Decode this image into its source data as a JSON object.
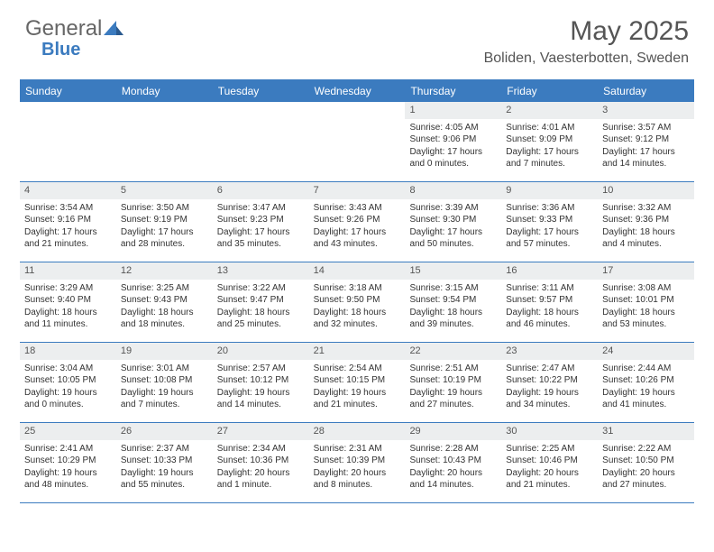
{
  "logo": {
    "text1": "General",
    "text2": "Blue"
  },
  "title": "May 2025",
  "location": "Boliden, Vaesterbotten, Sweden",
  "colors": {
    "header_bg": "#3b7bbf",
    "header_text": "#ffffff",
    "daynum_bg": "#eceeef",
    "border": "#3b7bbf",
    "body_bg": "#ffffff",
    "text": "#333333",
    "logo_general": "#666666",
    "logo_blue": "#3b7bbf"
  },
  "day_headers": [
    "Sunday",
    "Monday",
    "Tuesday",
    "Wednesday",
    "Thursday",
    "Friday",
    "Saturday"
  ],
  "weeks": [
    [
      {
        "n": "",
        "sr": "",
        "ss": "",
        "dl": ""
      },
      {
        "n": "",
        "sr": "",
        "ss": "",
        "dl": ""
      },
      {
        "n": "",
        "sr": "",
        "ss": "",
        "dl": ""
      },
      {
        "n": "",
        "sr": "",
        "ss": "",
        "dl": ""
      },
      {
        "n": "1",
        "sr": "Sunrise: 4:05 AM",
        "ss": "Sunset: 9:06 PM",
        "dl": "Daylight: 17 hours and 0 minutes."
      },
      {
        "n": "2",
        "sr": "Sunrise: 4:01 AM",
        "ss": "Sunset: 9:09 PM",
        "dl": "Daylight: 17 hours and 7 minutes."
      },
      {
        "n": "3",
        "sr": "Sunrise: 3:57 AM",
        "ss": "Sunset: 9:12 PM",
        "dl": "Daylight: 17 hours and 14 minutes."
      }
    ],
    [
      {
        "n": "4",
        "sr": "Sunrise: 3:54 AM",
        "ss": "Sunset: 9:16 PM",
        "dl": "Daylight: 17 hours and 21 minutes."
      },
      {
        "n": "5",
        "sr": "Sunrise: 3:50 AM",
        "ss": "Sunset: 9:19 PM",
        "dl": "Daylight: 17 hours and 28 minutes."
      },
      {
        "n": "6",
        "sr": "Sunrise: 3:47 AM",
        "ss": "Sunset: 9:23 PM",
        "dl": "Daylight: 17 hours and 35 minutes."
      },
      {
        "n": "7",
        "sr": "Sunrise: 3:43 AM",
        "ss": "Sunset: 9:26 PM",
        "dl": "Daylight: 17 hours and 43 minutes."
      },
      {
        "n": "8",
        "sr": "Sunrise: 3:39 AM",
        "ss": "Sunset: 9:30 PM",
        "dl": "Daylight: 17 hours and 50 minutes."
      },
      {
        "n": "9",
        "sr": "Sunrise: 3:36 AM",
        "ss": "Sunset: 9:33 PM",
        "dl": "Daylight: 17 hours and 57 minutes."
      },
      {
        "n": "10",
        "sr": "Sunrise: 3:32 AM",
        "ss": "Sunset: 9:36 PM",
        "dl": "Daylight: 18 hours and 4 minutes."
      }
    ],
    [
      {
        "n": "11",
        "sr": "Sunrise: 3:29 AM",
        "ss": "Sunset: 9:40 PM",
        "dl": "Daylight: 18 hours and 11 minutes."
      },
      {
        "n": "12",
        "sr": "Sunrise: 3:25 AM",
        "ss": "Sunset: 9:43 PM",
        "dl": "Daylight: 18 hours and 18 minutes."
      },
      {
        "n": "13",
        "sr": "Sunrise: 3:22 AM",
        "ss": "Sunset: 9:47 PM",
        "dl": "Daylight: 18 hours and 25 minutes."
      },
      {
        "n": "14",
        "sr": "Sunrise: 3:18 AM",
        "ss": "Sunset: 9:50 PM",
        "dl": "Daylight: 18 hours and 32 minutes."
      },
      {
        "n": "15",
        "sr": "Sunrise: 3:15 AM",
        "ss": "Sunset: 9:54 PM",
        "dl": "Daylight: 18 hours and 39 minutes."
      },
      {
        "n": "16",
        "sr": "Sunrise: 3:11 AM",
        "ss": "Sunset: 9:57 PM",
        "dl": "Daylight: 18 hours and 46 minutes."
      },
      {
        "n": "17",
        "sr": "Sunrise: 3:08 AM",
        "ss": "Sunset: 10:01 PM",
        "dl": "Daylight: 18 hours and 53 minutes."
      }
    ],
    [
      {
        "n": "18",
        "sr": "Sunrise: 3:04 AM",
        "ss": "Sunset: 10:05 PM",
        "dl": "Daylight: 19 hours and 0 minutes."
      },
      {
        "n": "19",
        "sr": "Sunrise: 3:01 AM",
        "ss": "Sunset: 10:08 PM",
        "dl": "Daylight: 19 hours and 7 minutes."
      },
      {
        "n": "20",
        "sr": "Sunrise: 2:57 AM",
        "ss": "Sunset: 10:12 PM",
        "dl": "Daylight: 19 hours and 14 minutes."
      },
      {
        "n": "21",
        "sr": "Sunrise: 2:54 AM",
        "ss": "Sunset: 10:15 PM",
        "dl": "Daylight: 19 hours and 21 minutes."
      },
      {
        "n": "22",
        "sr": "Sunrise: 2:51 AM",
        "ss": "Sunset: 10:19 PM",
        "dl": "Daylight: 19 hours and 27 minutes."
      },
      {
        "n": "23",
        "sr": "Sunrise: 2:47 AM",
        "ss": "Sunset: 10:22 PM",
        "dl": "Daylight: 19 hours and 34 minutes."
      },
      {
        "n": "24",
        "sr": "Sunrise: 2:44 AM",
        "ss": "Sunset: 10:26 PM",
        "dl": "Daylight: 19 hours and 41 minutes."
      }
    ],
    [
      {
        "n": "25",
        "sr": "Sunrise: 2:41 AM",
        "ss": "Sunset: 10:29 PM",
        "dl": "Daylight: 19 hours and 48 minutes."
      },
      {
        "n": "26",
        "sr": "Sunrise: 2:37 AM",
        "ss": "Sunset: 10:33 PM",
        "dl": "Daylight: 19 hours and 55 minutes."
      },
      {
        "n": "27",
        "sr": "Sunrise: 2:34 AM",
        "ss": "Sunset: 10:36 PM",
        "dl": "Daylight: 20 hours and 1 minute."
      },
      {
        "n": "28",
        "sr": "Sunrise: 2:31 AM",
        "ss": "Sunset: 10:39 PM",
        "dl": "Daylight: 20 hours and 8 minutes."
      },
      {
        "n": "29",
        "sr": "Sunrise: 2:28 AM",
        "ss": "Sunset: 10:43 PM",
        "dl": "Daylight: 20 hours and 14 minutes."
      },
      {
        "n": "30",
        "sr": "Sunrise: 2:25 AM",
        "ss": "Sunset: 10:46 PM",
        "dl": "Daylight: 20 hours and 21 minutes."
      },
      {
        "n": "31",
        "sr": "Sunrise: 2:22 AM",
        "ss": "Sunset: 10:50 PM",
        "dl": "Daylight: 20 hours and 27 minutes."
      }
    ]
  ]
}
